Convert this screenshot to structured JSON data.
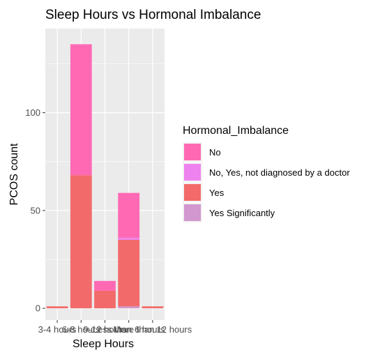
{
  "chart_data": {
    "type": "bar",
    "stacked": true,
    "title": "Sleep Hours vs Hormonal Imbalance",
    "xlabel": "Sleep Hours",
    "ylabel": "PCOS count",
    "categories": [
      "3-4 hours",
      "6-8 hours",
      "9-12 hours",
      "Less than 6 hours",
      "More than 12 hours"
    ],
    "ylim": [
      -6,
      143
    ],
    "yticks": [
      0,
      50,
      100
    ],
    "grid": true,
    "legend_title": "Hormonal_Imbalance",
    "legend_position": "right",
    "series": [
      {
        "name": "No",
        "color": "#FF69B4",
        "values": [
          0,
          67,
          5,
          23,
          0
        ]
      },
      {
        "name": "No, Yes, not diagnosed by a doctor",
        "color": "#EE82EE",
        "values": [
          0,
          0,
          0,
          1,
          0
        ]
      },
      {
        "name": "Yes",
        "color": "#F26A6A",
        "values": [
          1,
          68,
          9,
          34,
          1
        ]
      },
      {
        "name": "Yes Significantly",
        "color": "#D197CE",
        "values": [
          0,
          0,
          0,
          1,
          0
        ]
      }
    ]
  }
}
